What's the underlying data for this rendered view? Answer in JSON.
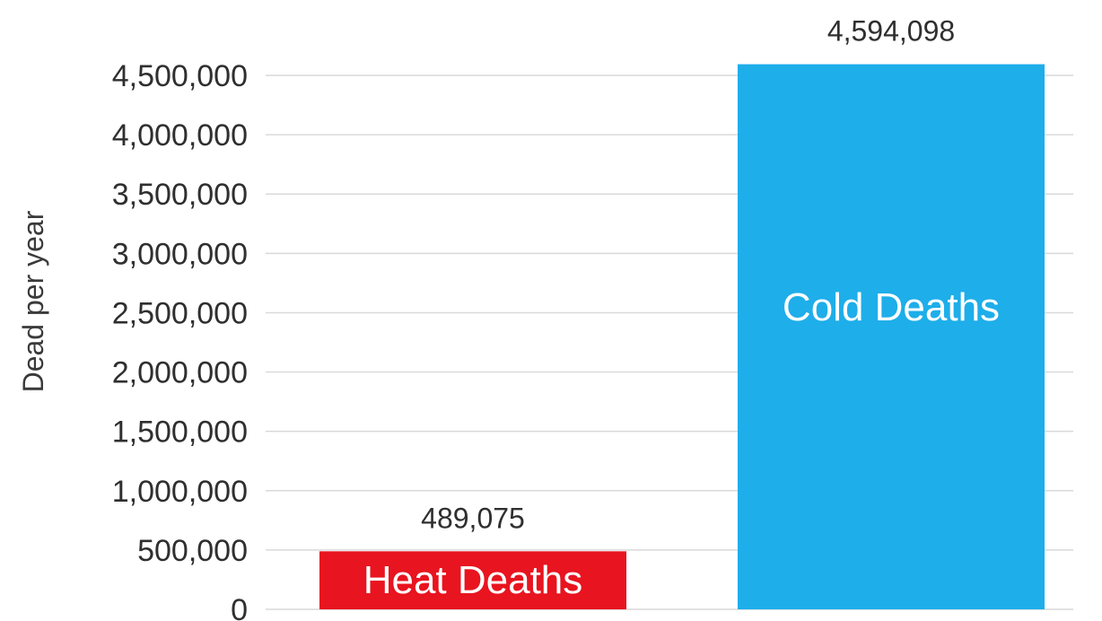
{
  "chart_data": {
    "type": "bar",
    "categories": [
      "Heat Deaths",
      "Cold Deaths"
    ],
    "values": [
      489075,
      4594098
    ],
    "value_labels": [
      "489,075",
      "4,594,098"
    ],
    "bar_colors": [
      "#e8141f",
      "#1eaeea"
    ],
    "ylabel": "Dead per year",
    "ylim": [
      0,
      4500000
    ],
    "yticks": [
      0,
      500000,
      1000000,
      1500000,
      2000000,
      2500000,
      3000000,
      3500000,
      4000000,
      4500000
    ],
    "ytick_labels": [
      "0",
      "500,000",
      "1,000,000",
      "1,500,000",
      "2,000,000",
      "2,500,000",
      "3,000,000",
      "3,500,000",
      "4,000,000",
      "4,500,000"
    ],
    "grid": true,
    "legend": "none"
  }
}
